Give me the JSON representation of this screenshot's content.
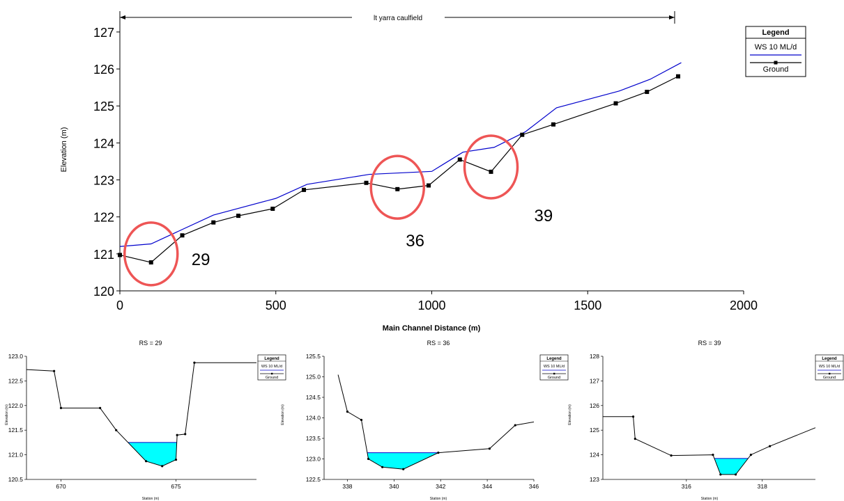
{
  "chart_data": [
    {
      "type": "line",
      "reach_label": "lt yarra caulfield",
      "xlabel": "Main Channel Distance (m)",
      "ylabel": "Elevation (m)",
      "xlim": [
        0,
        2000
      ],
      "ylim": [
        120,
        127.3
      ],
      "x_ticks": [
        0,
        500,
        1000,
        1500,
        2000
      ],
      "y_ticks": [
        120,
        121,
        122,
        123,
        124,
        125,
        126,
        127
      ],
      "legend": {
        "title": "Legend",
        "position": "top-right",
        "entries": [
          "WS 10 ML/d",
          "Ground"
        ]
      },
      "series": [
        {
          "name": "WS 10 ML/d",
          "color": "#0000cc",
          "x": [
            0,
            100,
            300,
            500,
            600,
            800,
            1000,
            1100,
            1200,
            1300,
            1400,
            1600,
            1700,
            1800
          ],
          "y": [
            121.2,
            121.27,
            122.05,
            122.5,
            122.88,
            123.15,
            123.23,
            123.75,
            123.88,
            124.3,
            124.95,
            125.4,
            125.72,
            126.17
          ]
        },
        {
          "name": "Ground",
          "color": "#000000",
          "marker": "square",
          "x": [
            0,
            100,
            200,
            300,
            380,
            490,
            590,
            790,
            890,
            990,
            1090,
            1190,
            1290,
            1390,
            1590,
            1690,
            1790
          ],
          "y": [
            120.97,
            120.77,
            121.5,
            121.85,
            122.03,
            122.22,
            122.73,
            122.92,
            122.75,
            122.85,
            123.55,
            123.22,
            124.22,
            124.5,
            125.07,
            125.38,
            125.8
          ]
        }
      ],
      "annotations": [
        {
          "label": "29",
          "cx": 100,
          "cy": 121.0
        },
        {
          "label": "36",
          "cx": 890,
          "cy": 122.8
        },
        {
          "label": "39",
          "cx": 1190,
          "cy": 123.35
        }
      ]
    },
    {
      "type": "area",
      "title": "RS = 29",
      "xlabel": "Station (m)",
      "ylabel": "Elevation (m)",
      "xlim": [
        668.5,
        678.5
      ],
      "ylim": [
        120.5,
        123.0
      ],
      "x_ticks": [
        670,
        675
      ],
      "y_ticks": [
        120.5,
        121.0,
        121.5,
        122.0,
        122.5,
        123.0
      ],
      "y_tick_labels": [
        "120.5",
        "121.0",
        "121.5",
        "122.0",
        "122.5",
        "123.0"
      ],
      "legend": {
        "title": "Legend",
        "entries": [
          "WS 10 ML/d",
          "Ground"
        ]
      },
      "water_level": 121.25,
      "water_color": "#00ffff",
      "ground": {
        "x": [
          668.5,
          669.7,
          670.0,
          671.7,
          672.4,
          673.7,
          674.4,
          675.0,
          675.05,
          675.4,
          675.8,
          678.5
        ],
        "y": [
          122.73,
          122.7,
          121.95,
          121.95,
          121.5,
          120.87,
          120.77,
          120.9,
          121.4,
          121.42,
          122.87,
          122.87
        ]
      }
    },
    {
      "type": "area",
      "title": "RS = 36",
      "xlabel": "Station (m)",
      "ylabel": "Elevation (m)",
      "xlim": [
        337.0,
        346.0
      ],
      "ylim": [
        122.5,
        125.5
      ],
      "x_ticks": [
        338,
        340,
        342,
        344,
        346
      ],
      "y_ticks": [
        122.5,
        123.0,
        123.5,
        124.0,
        124.5,
        125.0,
        125.5
      ],
      "y_tick_labels": [
        "122.5",
        "123.0",
        "123.5",
        "124.0",
        "124.5",
        "125.0",
        "125.5"
      ],
      "legend": {
        "title": "Legend",
        "entries": [
          "WS 10 ML/d",
          "Ground"
        ]
      },
      "water_level": 123.15,
      "water_color": "#00ffff",
      "ground": {
        "x": [
          337.6,
          338.0,
          338.6,
          338.9,
          339.5,
          340.4,
          341.9,
          344.1,
          345.2,
          346.0
        ],
        "y": [
          125.05,
          124.15,
          123.95,
          123.0,
          122.8,
          122.75,
          123.15,
          123.25,
          123.82,
          123.9
        ]
      }
    },
    {
      "type": "area",
      "title": "RS = 39",
      "xlabel": "Station (m)",
      "ylabel": "Elevation (m)",
      "xlim": [
        313.8,
        319.4
      ],
      "ylim": [
        123,
        128
      ],
      "x_ticks": [
        316,
        318
      ],
      "y_ticks": [
        123,
        124,
        125,
        126,
        127,
        128
      ],
      "y_tick_labels": [
        "123",
        "124",
        "125",
        "126",
        "127",
        "128"
      ],
      "legend": {
        "title": "Legend",
        "entries": [
          "WS 10 ML/d",
          "Ground"
        ]
      },
      "water_level": 123.85,
      "water_color": "#00ffff",
      "ground": {
        "x": [
          313.8,
          314.6,
          314.65,
          315.6,
          316.7,
          316.9,
          317.3,
          317.7,
          318.2,
          319.4
        ],
        "y": [
          125.55,
          125.55,
          124.65,
          123.97,
          124.0,
          123.2,
          123.2,
          124.0,
          124.35,
          125.1
        ]
      }
    }
  ]
}
